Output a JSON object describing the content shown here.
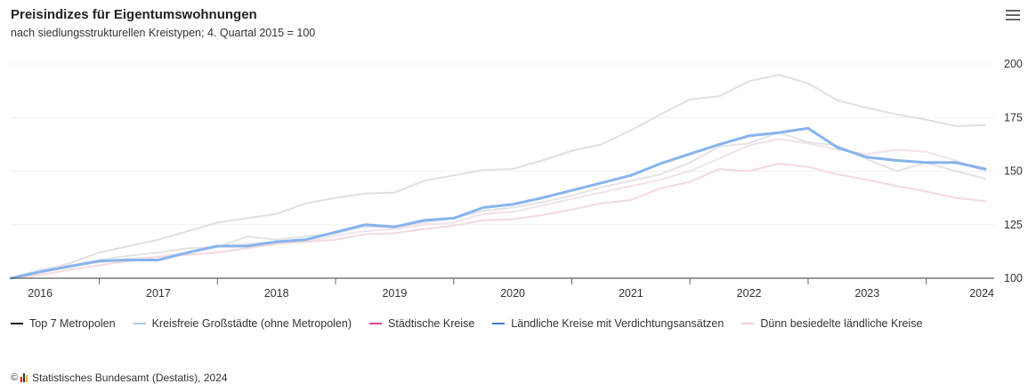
{
  "header": {
    "title": "Preisindizes für Eigentumswohnungen",
    "subtitle": "nach siedlungsstrukturellen Kreistypen; 4. Quartal 2015 = 100",
    "menu_icon": "hamburger-menu-icon"
  },
  "footer": {
    "copyright_symbol": "©",
    "source_text": "Statistisches Bundesamt (Destatis), 2024",
    "logo_icon": "destatis-logo-icon"
  },
  "chart_data": {
    "type": "line",
    "title": "Preisindizes für Eigentumswohnungen",
    "subtitle": "nach siedlungsstrukturellen Kreistypen; 4. Quartal 2015 = 100",
    "x": [
      2015.875,
      2016.125,
      2016.375,
      2016.625,
      2016.875,
      2017.125,
      2017.375,
      2017.625,
      2017.875,
      2018.125,
      2018.375,
      2018.625,
      2018.875,
      2019.125,
      2019.375,
      2019.625,
      2019.875,
      2020.125,
      2020.375,
      2020.625,
      2020.875,
      2021.125,
      2021.375,
      2021.625,
      2021.875,
      2022.125,
      2022.375,
      2022.625,
      2022.875,
      2023.125,
      2023.375,
      2023.625,
      2023.875,
      2024.125
    ],
    "x_tick_labels": [
      "2016",
      "2017",
      "2018",
      "2019",
      "2020",
      "2021",
      "2022",
      "2023",
      "2024"
    ],
    "y_ticks": [
      100,
      125,
      150,
      175,
      200
    ],
    "ylim": [
      100,
      205
    ],
    "grid": true,
    "legend_position": "bottom-left",
    "series": [
      {
        "name": "Top 7 Metropolen",
        "color": "#e0e0e0",
        "legend_color": "#1a1a2e",
        "width": 2,
        "values": [
          100,
          103.5,
          107,
          112,
          115,
          118,
          122,
          126,
          128,
          130,
          135,
          137.5,
          139.5,
          140,
          145.5,
          148,
          150.5,
          151,
          155,
          159.5,
          162.5,
          169,
          176.5,
          183.5,
          185,
          192,
          195,
          191,
          183,
          179.5,
          176.5,
          174,
          171,
          171.5
        ]
      },
      {
        "name": "Kreisfreie Großstädte (ohne Metropolen)",
        "color": "#e3e3e6",
        "legend_color": "#a8cbee",
        "width": 2,
        "values": [
          100,
          104,
          106,
          108.5,
          110.5,
          112,
          114,
          114.5,
          119.5,
          118,
          119.5,
          121,
          124,
          124,
          126,
          128,
          131.5,
          133,
          135.5,
          138.5,
          142.5,
          145.5,
          148.5,
          154,
          161.5,
          163,
          168,
          163.5,
          162,
          155.5,
          150,
          154,
          150,
          146.5
        ]
      },
      {
        "name": "Städtische Kreise",
        "color": "#f2e2ea",
        "legend_color": "#e0459a",
        "width": 2,
        "values": [
          100,
          102.5,
          105.5,
          107.5,
          109,
          110,
          112,
          115,
          116,
          117,
          117,
          120,
          122,
          123,
          125,
          126,
          130,
          131,
          134,
          137,
          140,
          143,
          146,
          150,
          156,
          162,
          165,
          163,
          160,
          158,
          160,
          159,
          155,
          150
        ]
      },
      {
        "name": "Ländliche Kreise mit Verdichtungsansätzen",
        "color": "#86b4ef",
        "legend_color": "#3d7bd4",
        "width": 3,
        "values": [
          100,
          103,
          105.5,
          108,
          108.5,
          108.5,
          112,
          115,
          115,
          117,
          118,
          121.5,
          125,
          124,
          127,
          128,
          133,
          134.5,
          137.5,
          141,
          144.5,
          148,
          153.5,
          158,
          162.5,
          166.5,
          168,
          170,
          161,
          156.5,
          155,
          154,
          154,
          151
        ]
      },
      {
        "name": "Dünn besiedelte ländliche Kreise",
        "color": "#f5d9de",
        "legend_color": "#f5cdd4",
        "width": 2,
        "values": [
          100,
          101.5,
          104,
          106,
          108,
          110,
          111,
          112,
          114,
          116,
          117,
          118,
          120.5,
          121,
          123,
          124.5,
          127,
          127.5,
          129.5,
          132,
          135,
          136.5,
          142,
          145,
          151,
          150,
          153.5,
          152,
          148.5,
          146,
          143,
          140.5,
          137.5,
          136
        ]
      }
    ]
  }
}
